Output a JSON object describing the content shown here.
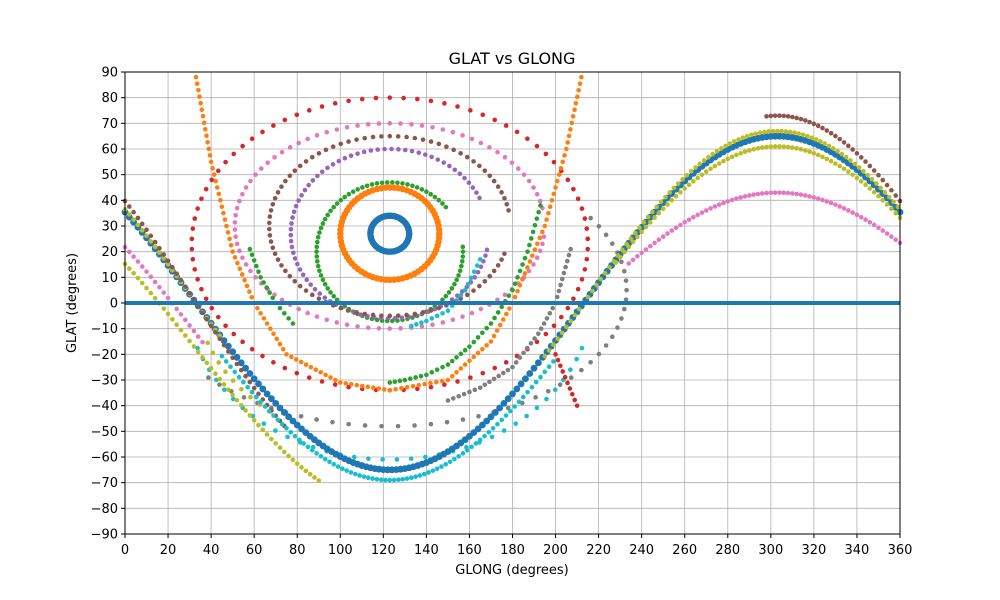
{
  "chart_data": {
    "type": "scatter",
    "title": "GLAT vs GLONG",
    "xlabel": "GLONG (degrees)",
    "ylabel": "GLAT (degrees)",
    "xlim": [
      0,
      360
    ],
    "ylim": [
      -90,
      90
    ],
    "xticks": [
      0,
      20,
      40,
      60,
      80,
      100,
      120,
      140,
      160,
      180,
      200,
      220,
      240,
      260,
      280,
      300,
      320,
      340,
      360
    ],
    "yticks": [
      -90,
      -80,
      -70,
      -60,
      -50,
      -40,
      -30,
      -20,
      -10,
      0,
      10,
      20,
      30,
      40,
      50,
      60,
      70,
      80,
      90
    ],
    "grid": true,
    "legend": "none",
    "series": [
      {
        "color": "#1f77b4",
        "shape": "ring",
        "center": [
          123,
          27
        ],
        "radius": [
          9,
          7
        ]
      },
      {
        "color": "#ff7f0e",
        "shape": "ring",
        "center": [
          123,
          27
        ],
        "radius": [
          23,
          18
        ]
      },
      {
        "color": "#2ca02c",
        "shape": "arc",
        "center": [
          123,
          20
        ],
        "radius": [
          34,
          27
        ],
        "t_range": [
          40,
          365
        ]
      },
      {
        "color": "#9467bd",
        "shape": "arc",
        "center": [
          123,
          27
        ],
        "radius": [
          46,
          33
        ],
        "t_range": [
          25,
          350
        ]
      },
      {
        "color": "#8c564b",
        "shape": "arc",
        "center": [
          123,
          30
        ],
        "radius": [
          56,
          35
        ],
        "t_range": [
          10,
          342
        ]
      },
      {
        "color": "#e377c2",
        "shape": "arc",
        "center": [
          123,
          30
        ],
        "radius": [
          72,
          40
        ],
        "t_range": [
          10,
          357
        ]
      },
      {
        "color": "#d62728",
        "shape": "arc",
        "center": [
          123,
          23
        ],
        "radius": [
          92,
          57
        ],
        "t_range": [
          2,
          365
        ]
      },
      {
        "color": "#7f7f7f",
        "shape": "arc",
        "center": [
          123,
          5
        ],
        "radius": [
          110,
          53
        ],
        "t_range": [
          220,
          395
        ]
      },
      {
        "color": "#17becf",
        "shape": "arc",
        "center": [
          123,
          5
        ],
        "radius": [
          95,
          66
        ],
        "t_range": [
          200,
          340
        ]
      },
      {
        "color": "#bcbd22",
        "shape": "arc",
        "center": [
          123,
          5
        ],
        "radius": [
          90,
          60
        ],
        "t_range": [
          200,
          235
        ]
      },
      {
        "color": "#ff7f0e",
        "shape": "curve",
        "points": [
          [
            33,
            88
          ],
          [
            40,
            55
          ],
          [
            50,
            20
          ],
          [
            60,
            0
          ],
          [
            75,
            -20
          ],
          [
            100,
            -31
          ],
          [
            123,
            -34
          ],
          [
            150,
            -30
          ],
          [
            170,
            -15
          ],
          [
            180,
            0
          ],
          [
            195,
            30
          ],
          [
            205,
            60
          ],
          [
            212,
            88
          ]
        ]
      },
      {
        "color": "#17becf",
        "shape": "curve",
        "points": [
          [
            165,
            17
          ],
          [
            158,
            5
          ],
          [
            150,
            -3
          ],
          [
            140,
            -7
          ],
          [
            133,
            -9
          ]
        ]
      },
      {
        "color": "#2ca02c",
        "shape": "curve",
        "points": [
          [
            193,
            38
          ],
          [
            187,
            20
          ],
          [
            180,
            5
          ],
          [
            170,
            -8
          ],
          [
            160,
            -17
          ],
          [
            150,
            -24
          ],
          [
            140,
            -28
          ],
          [
            130,
            -30
          ],
          [
            123,
            -31
          ]
        ]
      },
      {
        "color": "#2ca02c",
        "shape": "curve",
        "points": [
          [
            58,
            21
          ],
          [
            63,
            10
          ],
          [
            70,
            0
          ],
          [
            78,
            -8
          ]
        ]
      },
      {
        "color": "#7f7f7f",
        "shape": "curve",
        "points": [
          [
            207,
            21
          ],
          [
            200,
            0
          ],
          [
            192,
            -12
          ],
          [
            180,
            -25
          ],
          [
            165,
            -33
          ],
          [
            150,
            -38
          ]
        ]
      },
      {
        "color": "#d62728",
        "shape": "curve",
        "points": [
          [
            210,
            -40
          ],
          [
            200,
            -20
          ]
        ]
      },
      {
        "color": "#1f77b4",
        "shape": "sine",
        "amp": 65,
        "shift": 123,
        "offset": 0,
        "x_range": [
          0,
          360
        ],
        "lw": 3
      },
      {
        "color": "#bcbd22",
        "shape": "sine",
        "amp": 67,
        "shift": 123,
        "offset": 0,
        "x_range": [
          0,
          45
        ]
      },
      {
        "color": "#bcbd22",
        "shape": "sine",
        "amp": 67,
        "shift": 123,
        "offset": 0,
        "x_range": [
          195,
          360
        ]
      },
      {
        "color": "#bcbd22",
        "shape": "sine",
        "amp": 61,
        "shift": 123,
        "offset": -18,
        "x_range": [
          0,
          90
        ]
      },
      {
        "color": "#bcbd22",
        "shape": "sine",
        "amp": 61,
        "shift": 123,
        "offset": 0,
        "x_range": [
          228,
          360
        ]
      },
      {
        "color": "#8c564b",
        "shape": "sine",
        "amp": 73,
        "shift": 123,
        "offset": 0,
        "x_range": [
          0,
          75
        ]
      },
      {
        "color": "#8c564b",
        "shape": "sine",
        "amp": 73,
        "shift": 123,
        "offset": 0,
        "x_range": [
          298,
          360
        ]
      },
      {
        "color": "#e377c2",
        "shape": "sine",
        "amp": 43,
        "shift": 123,
        "offset": 0,
        "x_range": [
          234,
          360
        ]
      },
      {
        "color": "#e377c2",
        "shape": "sine",
        "amp": 62,
        "shift": 123,
        "offset": -12,
        "x_range": [
          0,
          37
        ]
      },
      {
        "color": "#17becf",
        "shape": "sine",
        "amp": 61,
        "shift": 123,
        "offset": -8,
        "x_range": [
          45,
          200
        ]
      },
      {
        "color": "#1f77b4",
        "shape": "hline",
        "y": 0,
        "x_range": [
          0,
          360
        ]
      }
    ]
  }
}
